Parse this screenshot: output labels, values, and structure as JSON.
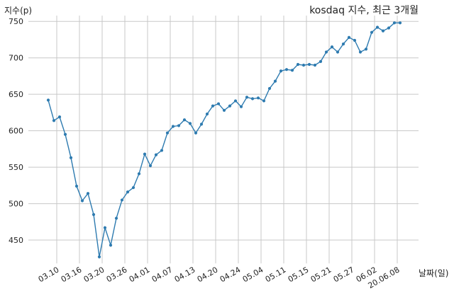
{
  "chart_data": {
    "type": "line",
    "title": "kosdaq 지수, 최근 3개월",
    "ylabel": "지수(p)",
    "xlabel": "날짜(일)",
    "ylim": [
      418,
      758
    ],
    "y_ticks": [
      450,
      500,
      550,
      600,
      650,
      700,
      750
    ],
    "grid": true,
    "series_color": "#2e7bb0",
    "x_tick_labels": [
      "03.10",
      "03.16",
      "03.20",
      "03.26",
      "04.01",
      "04.07",
      "04.13",
      "04.20",
      "04.24",
      "05.04",
      "05.11",
      "05.15",
      "05.21",
      "05.27",
      "06.02",
      "20.06.08"
    ],
    "x_tick_positions": [
      1.5,
      5.5,
      9.5,
      13.5,
      17.5,
      21.5,
      25.5,
      29.5,
      33.5,
      37.5,
      41.5,
      45.5,
      49.5,
      53.5,
      57.5,
      61.5
    ],
    "series": [
      {
        "values": [
          642,
          614,
          619,
          595,
          563,
          524,
          504,
          514,
          485,
          427,
          467,
          443,
          480,
          505,
          516,
          522,
          541,
          568,
          552,
          567,
          573,
          597,
          606,
          607,
          615,
          610,
          597,
          609,
          623,
          634,
          637,
          628,
          634,
          641,
          633,
          646,
          644,
          645,
          641,
          658,
          668,
          682,
          684,
          683,
          691,
          690,
          691,
          690,
          695,
          708,
          715,
          708,
          719,
          728,
          724,
          708,
          712,
          735,
          742,
          737,
          741,
          748,
          748
        ]
      }
    ]
  }
}
